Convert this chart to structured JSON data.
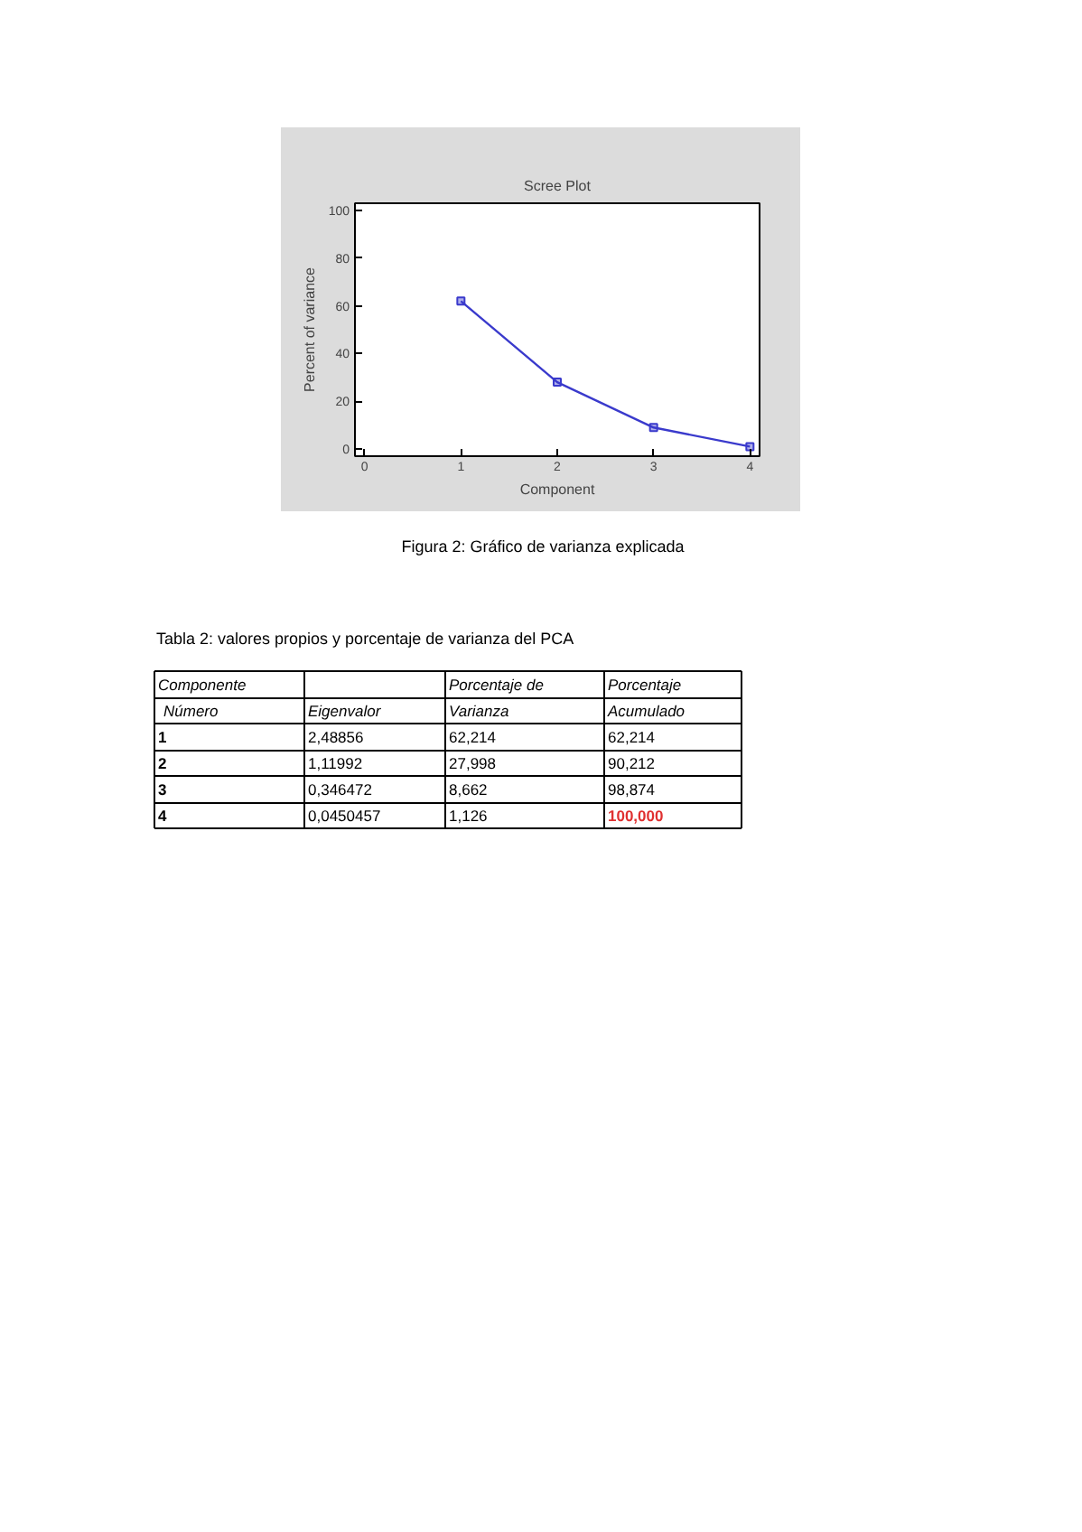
{
  "chart_data": {
    "type": "line",
    "title": "Scree Plot",
    "xlabel": "Component",
    "ylabel": "Percent of variance",
    "x": [
      1,
      2,
      3,
      4
    ],
    "series": [
      {
        "color": "#3a3acc",
        "values": [
          62,
          28,
          9,
          1
        ]
      }
    ],
    "xlim": [
      -0.1,
      4.1
    ],
    "ylim": [
      -3,
      103
    ],
    "xticks": [
      0,
      1,
      2,
      3,
      4
    ],
    "yticks": [
      0,
      20,
      40,
      60,
      80,
      100
    ],
    "grid": false,
    "marker": "square",
    "line_style": "solid",
    "annotations": [
      "Figura 2: Gráfico de varianza explicada",
      "Tabla 2: valores propios y porcentaje de varianza del PCA",
      "Componente",
      "Porcentaje de",
      "Porcentaje",
      "Número",
      "Eigenvalor",
      "Varianza",
      "Acumulado",
      "1",
      "2,48856",
      "62,214",
      "62,214",
      "2",
      "1,11992",
      "27,998",
      "90,212",
      "3",
      "0,346472",
      "8,662",
      "98,874",
      "4",
      "0,0450457",
      "1,126",
      "100,000"
    ]
  }
}
